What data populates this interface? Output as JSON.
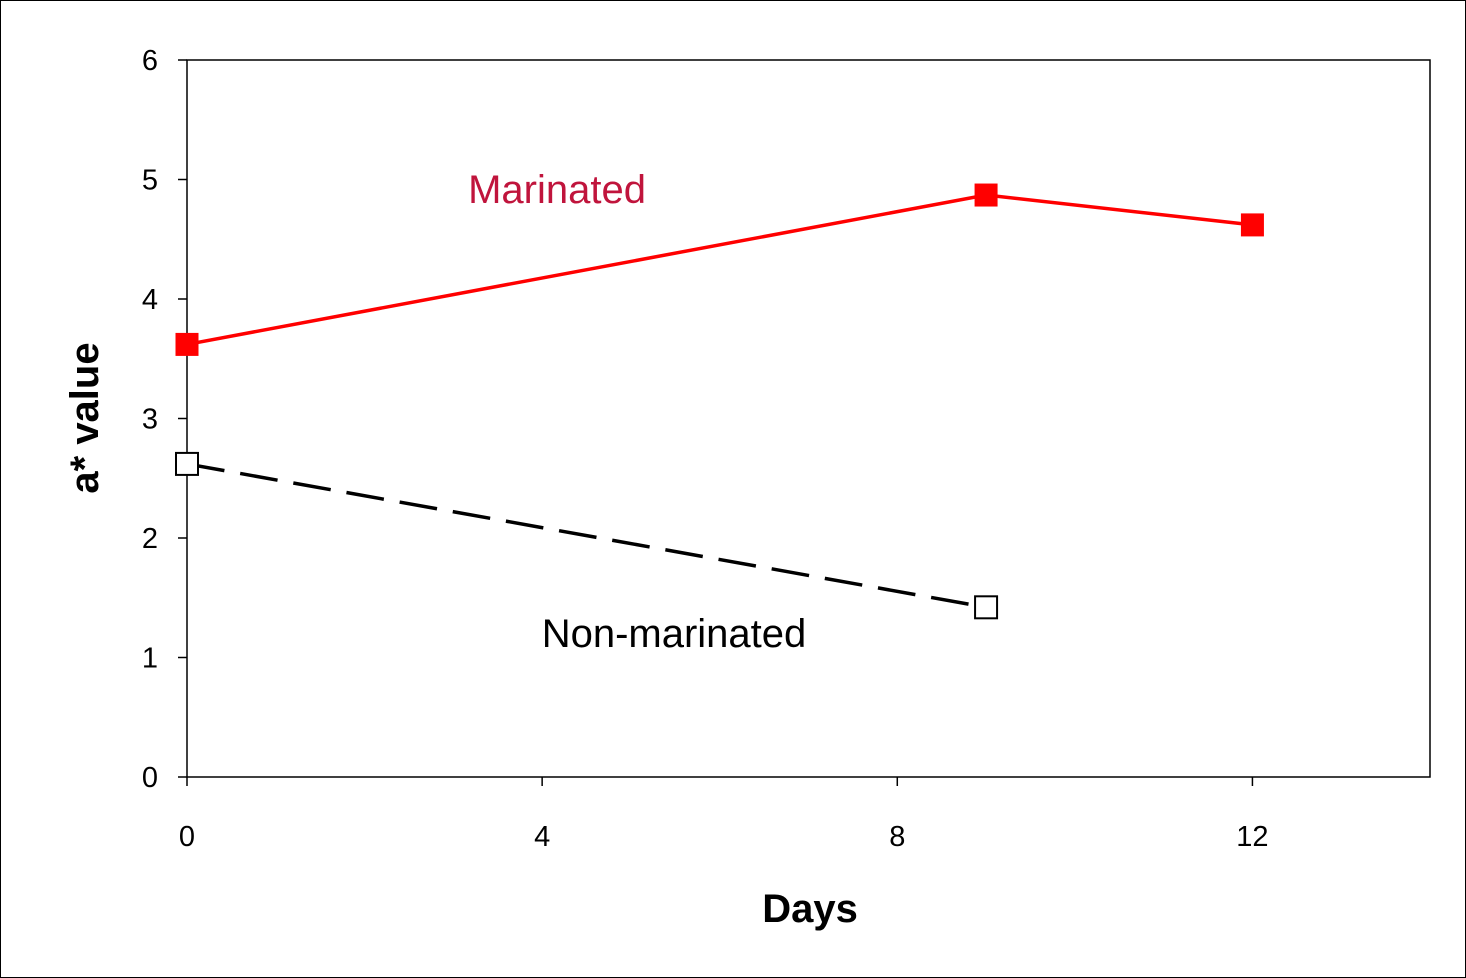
{
  "chart_data": {
    "type": "line",
    "xlabel": "Days",
    "ylabel": "a* value",
    "xlim": [
      0,
      14
    ],
    "ylim": [
      0,
      6
    ],
    "x_ticks": [
      "0",
      "4",
      "8",
      "12"
    ],
    "y_ticks": [
      "0",
      "1",
      "2",
      "3",
      "4",
      "5",
      "6"
    ],
    "grid": false,
    "legend": "none",
    "series": [
      {
        "name": "Marinated",
        "color": "#ff0000",
        "label_color": "#c0143c",
        "line_style": "solid",
        "marker": "filled-square",
        "x": [
          0,
          9,
          12
        ],
        "y": [
          3.62,
          4.87,
          4.62
        ]
      },
      {
        "name": "Non-marinated",
        "color": "#000000",
        "label_color": "#000000",
        "line_style": "dashed",
        "marker": "open-square",
        "x": [
          0,
          9
        ],
        "y": [
          2.62,
          1.42
        ]
      }
    ]
  }
}
